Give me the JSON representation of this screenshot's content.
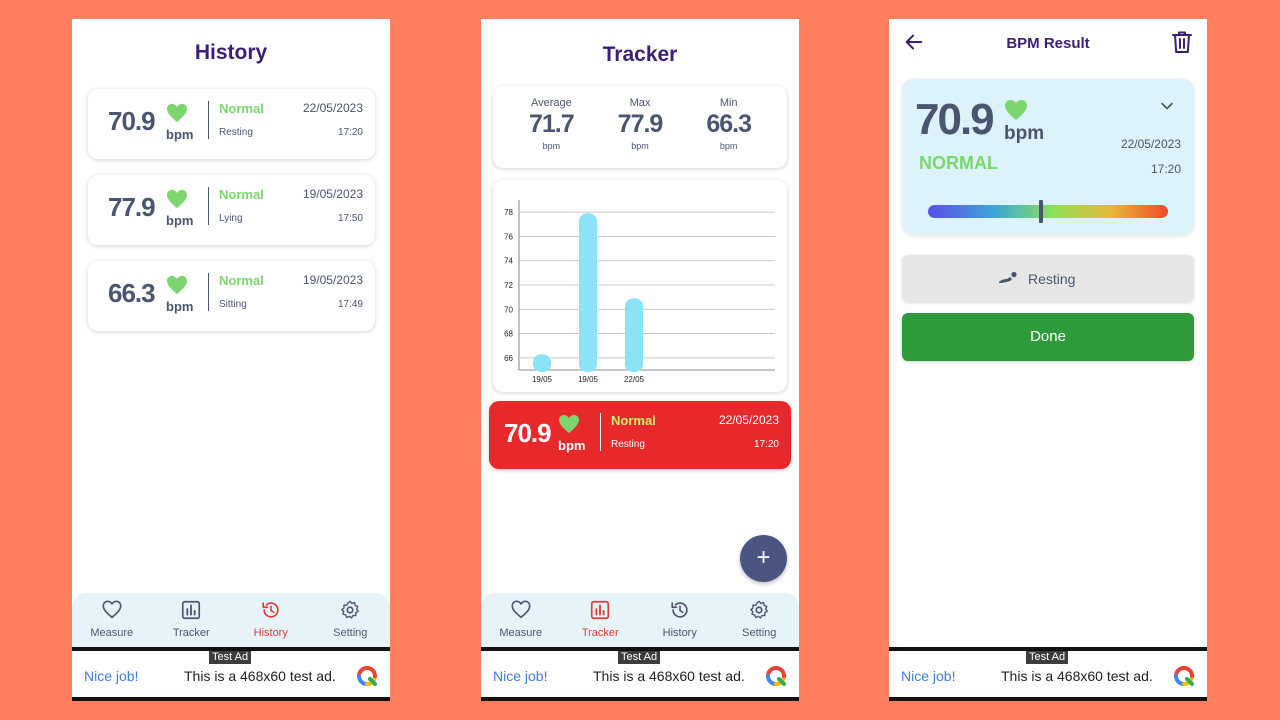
{
  "colors": {
    "accent_purple": "#3B1E7A",
    "normal_green": "#7BD66E",
    "active_red": "#E53935",
    "done_green": "#2E9A3A",
    "bar_blue": "#8BE3F8",
    "background": "#FF7F5E"
  },
  "nav": [
    {
      "label": "Measure",
      "icon": "heart-icon"
    },
    {
      "label": "Tracker",
      "icon": "bar-chart-icon"
    },
    {
      "label": "History",
      "icon": "history-icon"
    },
    {
      "label": "Setting",
      "icon": "gear-icon"
    }
  ],
  "ad": {
    "tag": "Test Ad",
    "nice": "Nice job!",
    "text": "This is a 468x60 test ad.",
    "logo_icon": "ad-logo-icon"
  },
  "history": {
    "title": "History",
    "active_tab": "History",
    "records": [
      {
        "value": "70.9",
        "unit": "bpm",
        "status": "Normal",
        "position": "Resting",
        "date": "22/05/2023",
        "time": "17:20"
      },
      {
        "value": "77.9",
        "unit": "bpm",
        "status": "Normal",
        "position": "Lying",
        "date": "19/05/2023",
        "time": "17:50"
      },
      {
        "value": "66.3",
        "unit": "bpm",
        "status": "Normal",
        "position": "Sitting",
        "date": "19/05/2023",
        "time": "17:49"
      }
    ]
  },
  "tracker": {
    "title": "Tracker",
    "active_tab": "Tracker",
    "stats": [
      {
        "label": "Average",
        "value": "71.7",
        "unit": "bpm"
      },
      {
        "label": "Max",
        "value": "77.9",
        "unit": "bpm"
      },
      {
        "label": "Min",
        "value": "66.3",
        "unit": "bpm"
      }
    ],
    "latest": {
      "value": "70.9",
      "unit": "bpm",
      "status": "Normal",
      "position": "Resting",
      "date": "22/05/2023",
      "time": "17:20"
    },
    "fab_label": "+"
  },
  "chart_data": {
    "type": "bar",
    "categories": [
      "19/05",
      "19/05",
      "22/05"
    ],
    "values": [
      66.3,
      77.9,
      70.9
    ],
    "yticks": [
      66,
      68,
      70,
      72,
      74,
      76,
      78
    ],
    "ylim": [
      65,
      79
    ],
    "grid": true,
    "title": "",
    "xlabel": "",
    "ylabel": ""
  },
  "result": {
    "title": "BPM Result",
    "back_icon": "back-arrow-icon",
    "trash_icon": "trash-icon",
    "value": "70.9",
    "unit": "bpm",
    "status": "NORMAL",
    "date": "22/05/2023",
    "time": "17:20",
    "gauge_level": 0.47,
    "position_label": "Resting",
    "done_label": "Done"
  }
}
